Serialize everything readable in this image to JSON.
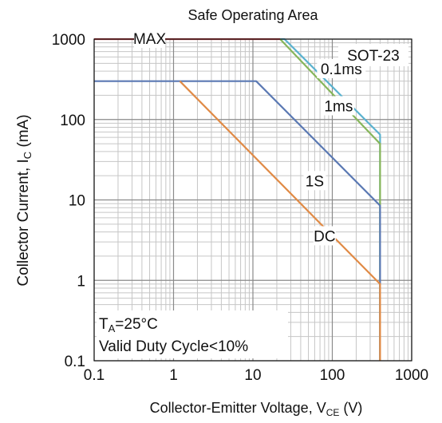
{
  "chart_data": {
    "type": "line",
    "title": "Safe Operating Area",
    "xlabel_main": "Collector-Emitter Voltage, V",
    "xlabel_sub": "CE",
    "xlabel_unit": " (V)",
    "ylabel_main": "Collector Current, I",
    "ylabel_sub": "C",
    "ylabel_unit": " (mA)",
    "x_scale": "log",
    "y_scale": "log",
    "xlim": [
      0.1,
      1000
    ],
    "ylim": [
      0.1,
      1000
    ],
    "x_ticks": [
      0.1,
      1,
      10,
      100,
      1000
    ],
    "x_tick_labels": [
      "0.1",
      "1",
      "10",
      "100",
      "1000"
    ],
    "y_ticks": [
      0.1,
      1,
      10,
      100,
      1000
    ],
    "y_tick_labels": [
      "0.1",
      "1",
      "10",
      "100",
      "1000"
    ],
    "grid": true,
    "series": [
      {
        "name": "0.1ms",
        "color": "#5ab2cf",
        "label_at": [
          130,
          420
        ],
        "points": [
          [
            22,
            1000
          ],
          [
            25,
            1000
          ],
          [
            400,
            65
          ],
          [
            400,
            0.1
          ]
        ]
      },
      {
        "name": "1ms",
        "color": "#86b55a",
        "label_at": [
          120,
          145
        ],
        "points": [
          [
            22,
            1000
          ],
          [
            400,
            50
          ],
          [
            400,
            0.1
          ]
        ]
      },
      {
        "name": "1S",
        "color": "#5b79b3",
        "label_at": [
          60,
          17
        ],
        "points": [
          [
            0.1,
            300
          ],
          [
            11,
            300
          ],
          [
            400,
            8.5
          ],
          [
            400,
            0.1
          ]
        ]
      },
      {
        "name": "DC",
        "color": "#e08a45",
        "label_at": [
          80,
          3.5
        ],
        "points": [
          [
            1.2,
            300
          ],
          [
            400,
            0.9
          ],
          [
            400,
            0.1
          ]
        ]
      },
      {
        "name": "MAX",
        "color": "#c8454a",
        "label_at": [
          0.5,
          1000
        ],
        "points": [
          [
            0.1,
            1000
          ],
          [
            22,
            1000
          ]
        ]
      }
    ],
    "annotations": {
      "package": "SOT-23",
      "ta_main": "T",
      "ta_sub": "A",
      "ta_rest": "=25°C",
      "duty": "Valid Duty Cycle<10%"
    }
  }
}
